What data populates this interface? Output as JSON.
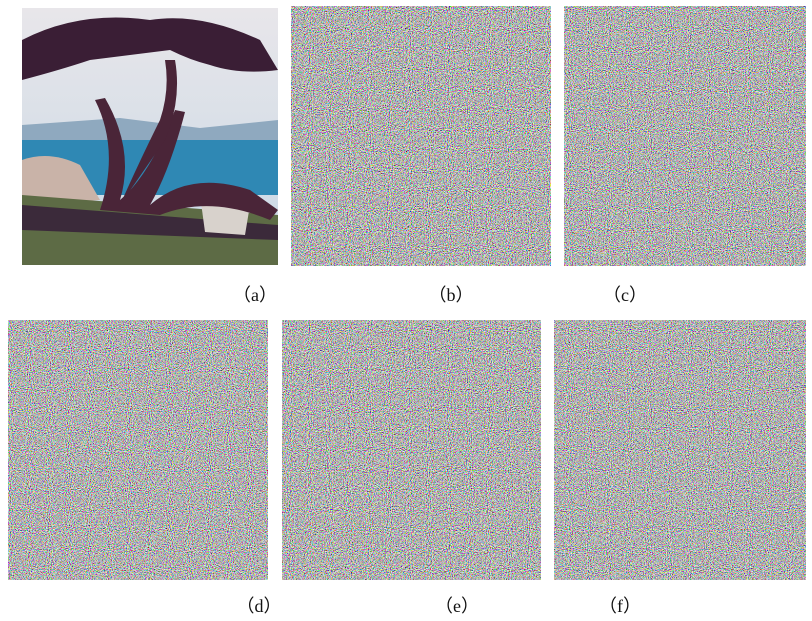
{
  "labels": [
    "（a）",
    "（b）",
    "（c）",
    "（d）",
    "（e）",
    "（f）"
  ]
}
